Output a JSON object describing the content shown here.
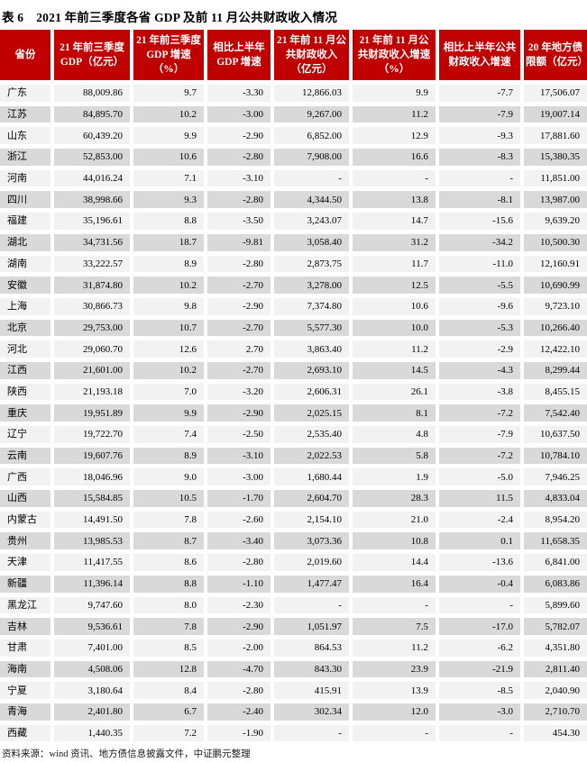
{
  "title": {
    "label_no": "表 6",
    "text": "2021 年前三季度各省 GDP 及前 11 月公共财政收入情况"
  },
  "colors": {
    "header_bg": "#C00000",
    "header_text": "#FFFFFF",
    "row_light": "#F2F2F2",
    "row_dark": "#D9D9D9"
  },
  "table": {
    "columns": [
      "省份",
      "21 年前三季度 GDP（亿元）",
      "21 年前三季度 GDP 增速（%）",
      "相比上半年 GDP 增速",
      "21 年前 11 月公共财政收入（亿元）",
      "21 年前 11 月公共财政收入增速（%）",
      "相比上半年公共财政收入增速",
      "20 年地方债限额（亿元）"
    ],
    "rows": [
      [
        "广东",
        "88,009.86",
        "9.7",
        "-3.30",
        "12,866.03",
        "9.9",
        "-7.7",
        "17,506.07"
      ],
      [
        "江苏",
        "84,895.70",
        "10.2",
        "-3.00",
        "9,267.00",
        "11.2",
        "-7.9",
        "19,007.14"
      ],
      [
        "山东",
        "60,439.20",
        "9.9",
        "-2.90",
        "6,852.00",
        "12.9",
        "-9.3",
        "17,881.60"
      ],
      [
        "浙江",
        "52,853.00",
        "10.6",
        "-2.80",
        "7,908.00",
        "16.6",
        "-8.3",
        "15,380.35"
      ],
      [
        "河南",
        "44,016.24",
        "7.1",
        "-3.10",
        "-",
        "-",
        "-",
        "11,851.00"
      ],
      [
        "四川",
        "38,998.66",
        "9.3",
        "-2.80",
        "4,344.50",
        "13.8",
        "-8.1",
        "13,987.00"
      ],
      [
        "福建",
        "35,196.61",
        "8.8",
        "-3.50",
        "3,243.07",
        "14.7",
        "-15.6",
        "9,639.20"
      ],
      [
        "湖北",
        "34,731.56",
        "18.7",
        "-9.81",
        "3,058.40",
        "31.2",
        "-34.2",
        "10,500.30"
      ],
      [
        "湖南",
        "33,222.57",
        "8.9",
        "-2.80",
        "2,873.75",
        "11.7",
        "-11.0",
        "12,160.91"
      ],
      [
        "安徽",
        "31,874.80",
        "10.2",
        "-2.70",
        "3,278.00",
        "12.5",
        "-5.5",
        "10,690.99"
      ],
      [
        "上海",
        "30,866.73",
        "9.8",
        "-2.90",
        "7,374.80",
        "10.6",
        "-9.6",
        "9,723.10"
      ],
      [
        "北京",
        "29,753.00",
        "10.7",
        "-2.70",
        "5,577.30",
        "10.0",
        "-5.3",
        "10,266.40"
      ],
      [
        "河北",
        "29,060.70",
        "12.6",
        "2.70",
        "3,863.40",
        "11.2",
        "-2.9",
        "12,422.10"
      ],
      [
        "江西",
        "21,601.00",
        "10.2",
        "-2.70",
        "2,693.10",
        "14.5",
        "-4.3",
        "8,299.44"
      ],
      [
        "陕西",
        "21,193.18",
        "7.0",
        "-3.20",
        "2,606.31",
        "26.1",
        "-3.8",
        "8,455.15"
      ],
      [
        "重庆",
        "19,951.89",
        "9.9",
        "-2.90",
        "2,025.15",
        "8.1",
        "-7.2",
        "7,542.40"
      ],
      [
        "辽宁",
        "19,722.70",
        "7.4",
        "-2.50",
        "2,535.40",
        "4.8",
        "-7.9",
        "10,637.50"
      ],
      [
        "云南",
        "19,607.76",
        "8.9",
        "-3.10",
        "2,022.53",
        "5.8",
        "-7.2",
        "10,784.10"
      ],
      [
        "广西",
        "18,046.96",
        "9.0",
        "-3.00",
        "1,680.44",
        "1.9",
        "-5.0",
        "7,946.25"
      ],
      [
        "山西",
        "15,584.85",
        "10.5",
        "-1.70",
        "2,604.70",
        "28.3",
        "11.5",
        "4,833.04"
      ],
      [
        "内蒙古",
        "14,491.50",
        "7.8",
        "-2.60",
        "2,154.10",
        "21.0",
        "-2.4",
        "8,954.20"
      ],
      [
        "贵州",
        "13,985.53",
        "8.7",
        "-3.40",
        "3,073.36",
        "10.8",
        "0.1",
        "11,658.35"
      ],
      [
        "天津",
        "11,417.55",
        "8.6",
        "-2.80",
        "2,019.60",
        "14.4",
        "-13.6",
        "6,841.00"
      ],
      [
        "新疆",
        "11,396.14",
        "8.8",
        "-1.10",
        "1,477.47",
        "16.4",
        "-0.4",
        "6,083.86"
      ],
      [
        "黑龙江",
        "9,747.60",
        "8.0",
        "-2.30",
        "-",
        "-",
        "-",
        "5,899.60"
      ],
      [
        "吉林",
        "9,536.61",
        "7.8",
        "-2.90",
        "1,051.97",
        "7.5",
        "-17.0",
        "5,782.07"
      ],
      [
        "甘肃",
        "7,401.00",
        "8.5",
        "-2.00",
        "864.53",
        "11.2",
        "-6.2",
        "4,351.80"
      ],
      [
        "海南",
        "4,508.06",
        "12.8",
        "-4.70",
        "843.30",
        "23.9",
        "-21.9",
        "2,811.40"
      ],
      [
        "宁夏",
        "3,180.64",
        "8.4",
        "-2.80",
        "415.91",
        "13.9",
        "-8.5",
        "2,040.90"
      ],
      [
        "青海",
        "2,401.80",
        "6.7",
        "-2.40",
        "302.34",
        "12.0",
        "-3.0",
        "2,710.70"
      ],
      [
        "西藏",
        "1,440.35",
        "7.2",
        "-1.90",
        "-",
        "-",
        "-",
        "454.30"
      ]
    ]
  },
  "footer": {
    "source": "资料来源：wind 资讯、地方债信息披露文件，中证鹏元整理"
  }
}
